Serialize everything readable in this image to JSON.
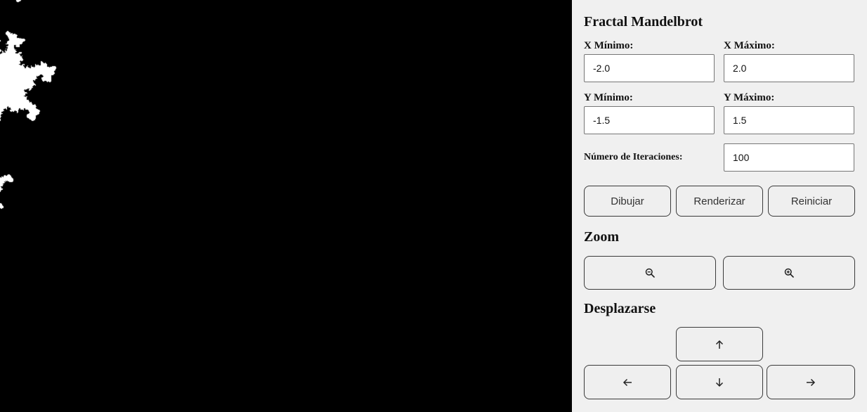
{
  "panel": {
    "title": "Fractal Mandelbrot",
    "x_min": {
      "label": "X Mínimo:",
      "value": "-2.0"
    },
    "x_max": {
      "label": "X Máximo:",
      "value": "2.0"
    },
    "y_min": {
      "label": "Y Mínimo:",
      "value": "-1.5"
    },
    "y_max": {
      "label": "Y Máximo:",
      "value": "1.5"
    },
    "iterations": {
      "label": "Número de Iteraciones:",
      "value": "100"
    },
    "buttons": {
      "draw": "Dibujar",
      "render": "Renderizar",
      "reset": "Reiniciar"
    },
    "zoom": {
      "title": "Zoom",
      "out_icon": "zoom-out-icon",
      "in_icon": "zoom-in-icon"
    },
    "pan": {
      "title": "Desplazarse",
      "up_icon": "arrow-up-icon",
      "left_icon": "arrow-left-icon",
      "down_icon": "arrow-down-icon",
      "right_icon": "arrow-right-icon"
    }
  },
  "colors": {
    "panel_bg": "#f0f0f0",
    "fractal_inside": "#000000",
    "fractal_outside": "#ffffff"
  }
}
